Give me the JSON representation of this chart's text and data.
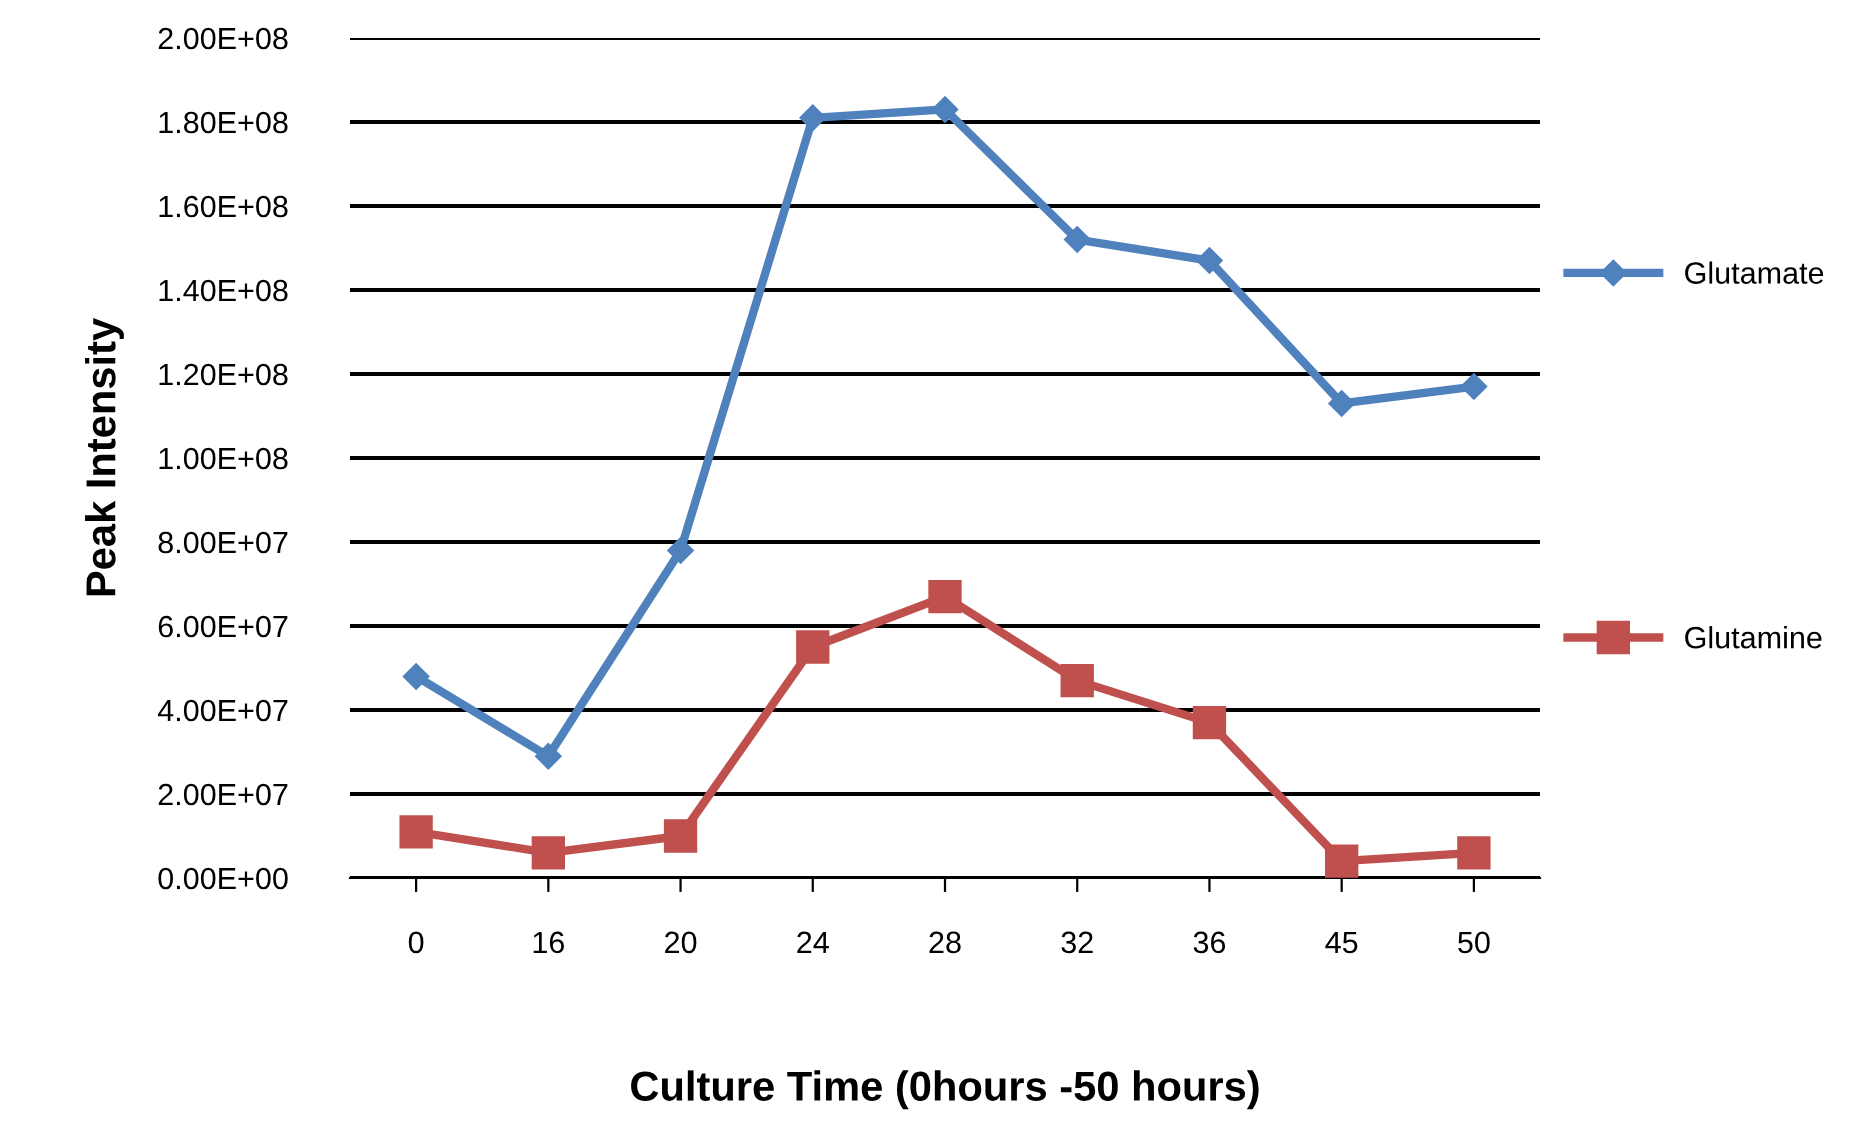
{
  "chart_data": {
    "type": "line",
    "xlabel": "Culture Time (0hours -50 hours)",
    "ylabel": "Peak Intensity",
    "categories": [
      "0",
      "16",
      "20",
      "24",
      "28",
      "32",
      "36",
      "45",
      "50"
    ],
    "series": [
      {
        "name": "Glutamate",
        "color": "#4f81bd",
        "marker": "diamond",
        "values": [
          48000000,
          29000000,
          78000000,
          181000000,
          183000000,
          152000000,
          147000000,
          113000000,
          117000000
        ]
      },
      {
        "name": "Glutamine",
        "color": "#c0504d",
        "marker": "square",
        "values": [
          11000000,
          6000000,
          10000000,
          55000000,
          67000000,
          47000000,
          37000000,
          4000000,
          6000000
        ]
      }
    ],
    "ylim": [
      0,
      200000000
    ],
    "yticks": [
      {
        "value": 0,
        "label": "0.00E+00"
      },
      {
        "value": 20000000,
        "label": "2.00E+07"
      },
      {
        "value": 40000000,
        "label": "4.00E+07"
      },
      {
        "value": 60000000,
        "label": "6.00E+07"
      },
      {
        "value": 80000000,
        "label": "8.00E+07"
      },
      {
        "value": 100000000,
        "label": "1.00E+08"
      },
      {
        "value": 120000000,
        "label": "1.20E+08"
      },
      {
        "value": 140000000,
        "label": "1.40E+08"
      },
      {
        "value": 160000000,
        "label": "1.60E+08"
      },
      {
        "value": 180000000,
        "label": "1.80E+08"
      },
      {
        "value": 200000000,
        "label": "2.00E+08"
      }
    ],
    "grid": "y",
    "legend": "right"
  }
}
